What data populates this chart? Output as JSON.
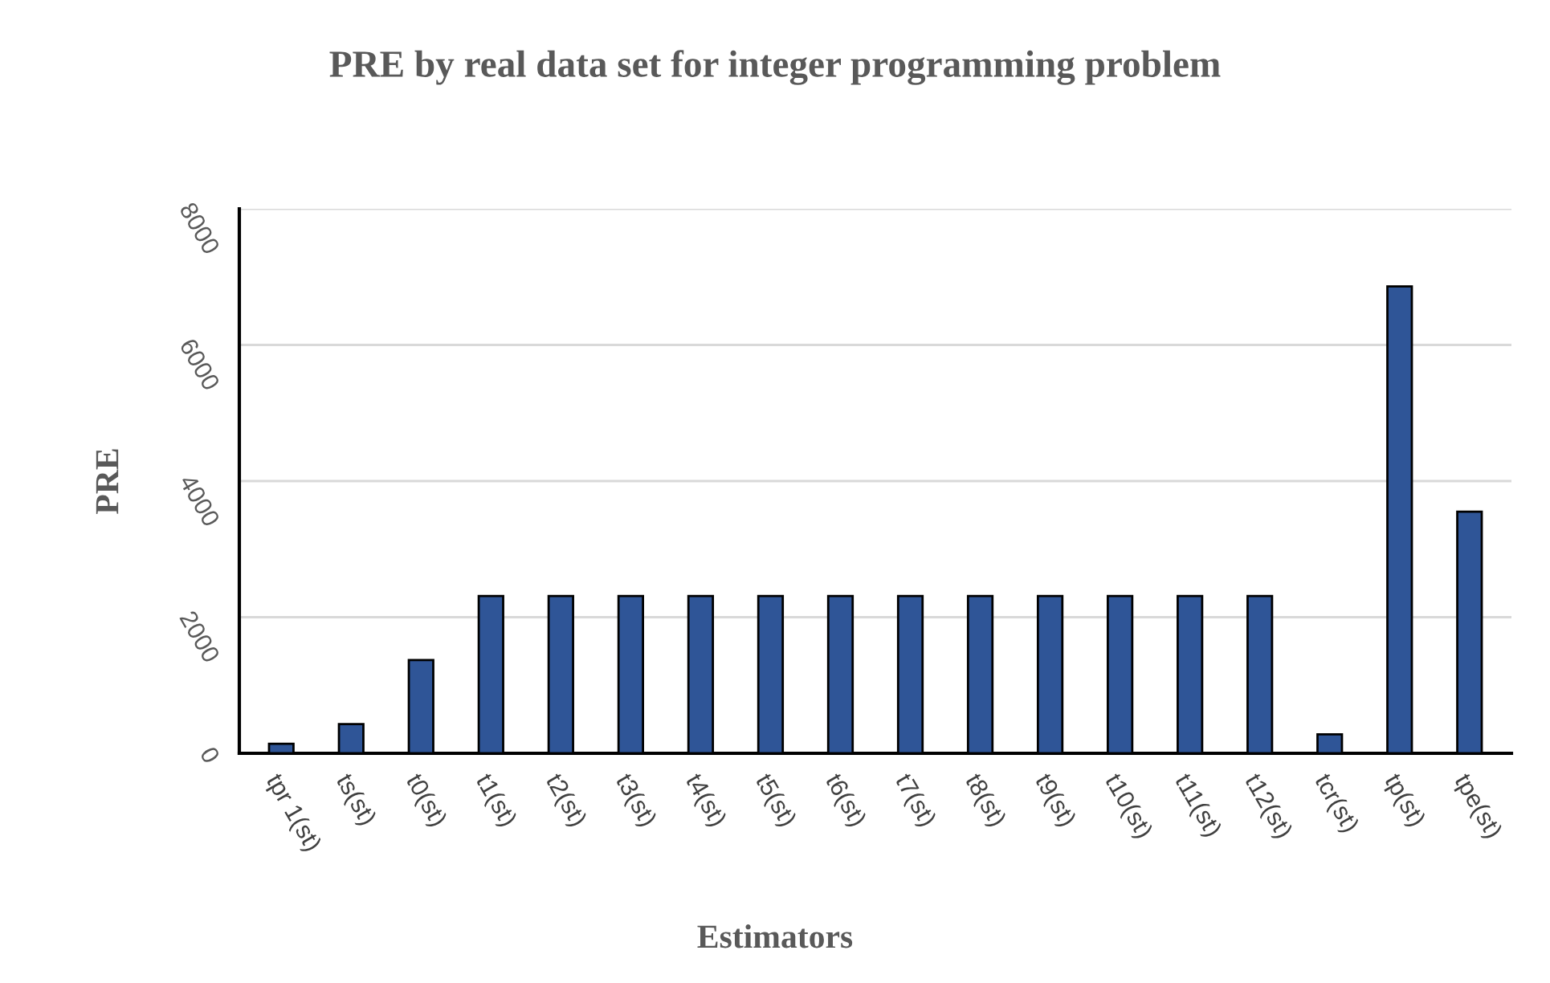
{
  "chart_data": {
    "type": "bar",
    "title": "PRE by real data set for integer programming problem",
    "xlabel": "Estimators",
    "ylabel": "PRE",
    "categories": [
      "tpr 1(st)",
      "ts(st)",
      "t0(st)",
      "t1(st)",
      "t2(st)",
      "t3(st)",
      "t4(st)",
      "t5(st)",
      "t6(st)",
      "t7(st)",
      "t8(st)",
      "t9(st)",
      "t10(st)",
      "t11(st)",
      "t12(st)",
      "tcr(st)",
      "tp(st)",
      "tpe(st)"
    ],
    "values": [
      140,
      430,
      1370,
      2310,
      2310,
      2310,
      2310,
      2310,
      2310,
      2310,
      2310,
      2310,
      2310,
      2310,
      2310,
      280,
      6860,
      3550
    ],
    "color": "#2f5597",
    "ylim": [
      0,
      8000
    ],
    "yticks": [
      0,
      2000,
      4000,
      6000,
      8000
    ],
    "grid": "y",
    "legend": false
  }
}
